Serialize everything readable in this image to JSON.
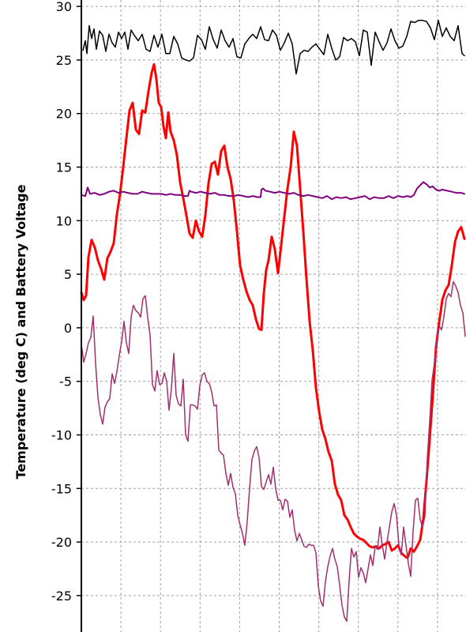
{
  "chart_data": {
    "type": "line",
    "title": "",
    "xlabel": "",
    "ylabel": "Temperature (deg C) and Battery Voltage",
    "ylim": [
      -28.4,
      30.6
    ],
    "xlim": [
      0,
      590
    ],
    "yticks": [
      30,
      25,
      20,
      15,
      10,
      5,
      0,
      -5,
      -10,
      -15,
      -20,
      -25
    ],
    "xgrid": [
      0,
      50,
      100,
      150,
      200,
      250,
      300,
      350,
      400,
      450
    ],
    "grid": true,
    "legend": "none",
    "series": [
      {
        "color": "#000000",
        "stroke_width": 1.5,
        "x": [
          105,
          108,
          110,
          113,
          116,
          119,
          122,
          126,
          130,
          134,
          138,
          142,
          146,
          150,
          154,
          158,
          162,
          166,
          170,
          175,
          180,
          185,
          190,
          195,
          200,
          205,
          210,
          215,
          220,
          225,
          230,
          235,
          240,
          245,
          250,
          255,
          260,
          265,
          270,
          275,
          280,
          285,
          290,
          295,
          300,
          305,
          310,
          315,
          320,
          325,
          330,
          335,
          340,
          345,
          350,
          355,
          360,
          365,
          370,
          375,
          380,
          385,
          390,
          395,
          400,
          405,
          410,
          415,
          420,
          425,
          430,
          435,
          440,
          445,
          450,
          455,
          460,
          465,
          470,
          475,
          480,
          485,
          490,
          495,
          500,
          505,
          510,
          515,
          520,
          525,
          530,
          535,
          540,
          545,
          550,
          555,
          560,
          565,
          570,
          575,
          580,
          585,
          588
        ],
        "values": [
          25.9,
          26.8,
          25.6,
          28.2,
          27.0,
          27.9,
          26.0,
          27.7,
          27.3,
          25.8,
          27.4,
          26.6,
          26.2,
          27.6,
          27.0,
          27.6,
          26.0,
          27.8,
          27.3,
          26.8,
          27.4,
          26.0,
          25.8,
          27.3,
          26.2,
          27.4,
          25.6,
          25.6,
          27.2,
          26.5,
          25.2,
          25.0,
          24.9,
          25.2,
          27.3,
          26.9,
          26.0,
          28.1,
          26.9,
          26.1,
          27.8,
          26.8,
          26.2,
          27.0,
          25.3,
          25.2,
          26.5,
          27.0,
          27.4,
          27.0,
          28.1,
          26.9,
          26.8,
          27.8,
          27.3,
          25.9,
          26.6,
          27.5,
          26.5,
          23.7,
          25.6,
          25.9,
          25.8,
          26.2,
          26.5,
          26.0,
          25.5,
          27.4,
          26.1,
          25.0,
          25.3,
          27.1,
          26.8,
          27.0,
          26.7,
          25.4,
          27.8,
          27.6,
          24.5,
          27.6,
          26.7,
          25.9,
          26.6,
          27.9,
          26.8,
          26.1,
          26.3,
          27.2,
          28.6,
          28.5,
          28.7,
          28.7,
          28.6,
          28.0,
          26.9,
          28.7,
          27.2,
          28.0,
          27.2,
          26.8,
          28.2,
          25.6,
          25.4
        ]
      },
      {
        "color": "#ff0000",
        "stroke_width": 3,
        "x": [
          103,
          106,
          109,
          112,
          116,
          120,
          124,
          128,
          132,
          136,
          140,
          144,
          148,
          152,
          156,
          160,
          164,
          168,
          172,
          176,
          180,
          184,
          188,
          192,
          195,
          198,
          201,
          204,
          207,
          210,
          213,
          216,
          220,
          224,
          228,
          232,
          236,
          240,
          244,
          248,
          252,
          256,
          260,
          264,
          268,
          272,
          276,
          280,
          284,
          288,
          292,
          296,
          300,
          304,
          308,
          312,
          316,
          320,
          324,
          328,
          331,
          334,
          337,
          340,
          344,
          348,
          352,
          356,
          360,
          364,
          368,
          372,
          376,
          380,
          384,
          388,
          392,
          396,
          400,
          404,
          408,
          412,
          416,
          420,
          424,
          428,
          432,
          436,
          440,
          444,
          448,
          452,
          456,
          460,
          464,
          468,
          472,
          476,
          480,
          484,
          488,
          492,
          496,
          500,
          504,
          508,
          512,
          516,
          520,
          524,
          528,
          532,
          536,
          540,
          544,
          548,
          552,
          556,
          560,
          564,
          568,
          572,
          576,
          580,
          584,
          588
        ],
        "values": [
          3.3,
          2.6,
          3.0,
          6.6,
          8.2,
          7.5,
          6.3,
          5.5,
          4.5,
          6.5,
          7.1,
          7.9,
          10.6,
          12.5,
          15.0,
          17.7,
          20.3,
          21.0,
          18.5,
          18.1,
          20.3,
          20.1,
          22.1,
          23.8,
          24.6,
          23.2,
          21.0,
          20.6,
          18.8,
          17.7,
          20.1,
          18.3,
          17.5,
          16.1,
          13.6,
          12.1,
          10.5,
          8.8,
          8.4,
          10.0,
          9.0,
          8.5,
          10.5,
          13.5,
          15.3,
          15.5,
          14.3,
          16.5,
          17.0,
          15.0,
          13.9,
          11.9,
          9.0,
          5.8,
          4.5,
          3.4,
          2.6,
          2.1,
          0.8,
          -0.1,
          -0.2,
          3.2,
          5.4,
          6.3,
          8.5,
          7.3,
          5.1,
          7.7,
          10.4,
          13.0,
          15.0,
          18.3,
          17.0,
          13.0,
          9.0,
          4.6,
          0.6,
          -2.1,
          -5.6,
          -7.8,
          -9.5,
          -10.4,
          -11.6,
          -12.4,
          -14.6,
          -15.6,
          -16.1,
          -17.5,
          -17.9,
          -18.6,
          -19.2,
          -19.5,
          -19.7,
          -19.8,
          -20.1,
          -20.4,
          -20.5,
          -20.4,
          -20.6,
          -20.3,
          -20.2,
          -20.0,
          -20.8,
          -20.6,
          -20.3,
          -21.0,
          -21.3,
          -21.5,
          -20.6,
          -20.9,
          -20.4,
          -19.8,
          -17.8,
          -14.3,
          -10.4,
          -6.3,
          -1.8,
          0.5,
          2.6,
          3.5,
          4.0,
          5.8,
          8.0,
          9.0,
          9.4,
          8.3
        ]
      },
      {
        "color": "#800080",
        "stroke_width": 2,
        "x": [
          103,
          108,
          111,
          114,
          120,
          126,
          132,
          138,
          144,
          150,
          156,
          162,
          168,
          174,
          180,
          186,
          192,
          198,
          204,
          210,
          216,
          222,
          228,
          234,
          238,
          240,
          242,
          248,
          254,
          260,
          266,
          272,
          278,
          284,
          290,
          296,
          302,
          308,
          314,
          320,
          326,
          330,
          331,
          333,
          336,
          342,
          348,
          354,
          360,
          366,
          372,
          378,
          384,
          390,
          396,
          402,
          408,
          414,
          420,
          426,
          432,
          438,
          444,
          450,
          456,
          462,
          468,
          474,
          480,
          486,
          492,
          498,
          504,
          510,
          516,
          520,
          524,
          528,
          532,
          536,
          540,
          544,
          548,
          552,
          556,
          560,
          566,
          572,
          578,
          584,
          588
        ],
        "values": [
          12.4,
          12.3,
          13.1,
          12.5,
          12.6,
          12.4,
          12.5,
          12.7,
          12.8,
          12.6,
          12.7,
          12.6,
          12.5,
          12.5,
          12.7,
          12.6,
          12.5,
          12.5,
          12.5,
          12.4,
          12.5,
          12.4,
          12.4,
          12.3,
          12.3,
          12.8,
          12.7,
          12.6,
          12.7,
          12.6,
          12.5,
          12.6,
          12.4,
          12.4,
          12.3,
          12.3,
          12.4,
          12.3,
          12.2,
          12.3,
          12.2,
          12.2,
          12.9,
          13.0,
          12.8,
          12.7,
          12.6,
          12.7,
          12.6,
          12.5,
          12.6,
          12.4,
          12.3,
          12.4,
          12.3,
          12.2,
          12.1,
          12.3,
          12.0,
          12.2,
          12.1,
          12.2,
          12.0,
          12.1,
          12.2,
          12.3,
          12.0,
          12.2,
          12.1,
          12.1,
          12.3,
          12.1,
          12.3,
          12.2,
          12.3,
          12.2,
          12.4,
          13.0,
          13.3,
          13.6,
          13.4,
          13.1,
          13.2,
          12.9,
          12.8,
          12.9,
          12.8,
          12.7,
          12.6,
          12.6,
          12.5
        ]
      },
      {
        "color": "#a0306e",
        "stroke_width": 1.5,
        "x": [
          103,
          106,
          109,
          112,
          115,
          118,
          121,
          124,
          127,
          130,
          133,
          136,
          139,
          142,
          145,
          148,
          151,
          154,
          157,
          160,
          163,
          166,
          169,
          172,
          175,
          178,
          181,
          184,
          187,
          190,
          193,
          196,
          199,
          202,
          205,
          208,
          211,
          214,
          217,
          220,
          223,
          226,
          229,
          232,
          235,
          238,
          241,
          244,
          247,
          250,
          253,
          256,
          259,
          262,
          265,
          268,
          271,
          274,
          277,
          280,
          283,
          286,
          289,
          292,
          295,
          298,
          301,
          304,
          307,
          310,
          313,
          316,
          319,
          322,
          325,
          328,
          331,
          334,
          337,
          340,
          343,
          346,
          349,
          352,
          355,
          358,
          361,
          364,
          367,
          370,
          373,
          376,
          379,
          382,
          385,
          388,
          391,
          394,
          397,
          400,
          403,
          406,
          409,
          412,
          415,
          418,
          421,
          424,
          427,
          430,
          433,
          436,
          439,
          442,
          445,
          448,
          451,
          454,
          457,
          460,
          463,
          466,
          469,
          472,
          475,
          478,
          481,
          484,
          487,
          490,
          493,
          496,
          499,
          502,
          505,
          508,
          511,
          514,
          517,
          520,
          523,
          526,
          529,
          532,
          535,
          538,
          541,
          544,
          547,
          550,
          553,
          556,
          559,
          562,
          565,
          568,
          571,
          574,
          577,
          580,
          583,
          586,
          589
        ],
        "values": [
          -1.5,
          -3.2,
          -2.4,
          -1.4,
          -0.9,
          1.1,
          -3.3,
          -6.5,
          -8.1,
          -9.0,
          -7.4,
          -6.9,
          -6.6,
          -4.3,
          -5.2,
          -4.1,
          -2.6,
          -1.3,
          0.6,
          -1.4,
          -2.4,
          1.0,
          2.1,
          1.6,
          1.4,
          1.0,
          2.7,
          3.0,
          1.0,
          -0.7,
          -5.3,
          -5.9,
          -4.0,
          -5.3,
          -5.2,
          -4.2,
          -5.0,
          -7.7,
          -5.7,
          -2.4,
          -6.3,
          -7.1,
          -7.3,
          -4.8,
          -10.0,
          -10.6,
          -7.2,
          -7.2,
          -7.3,
          -7.6,
          -5.4,
          -4.4,
          -4.2,
          -5.0,
          -5.2,
          -6.0,
          -7.3,
          -7.2,
          -11.4,
          -11.7,
          -11.9,
          -13.6,
          -14.7,
          -13.6,
          -14.9,
          -15.5,
          -17.5,
          -18.4,
          -19.2,
          -20.3,
          -18.1,
          -15.0,
          -12.3,
          -11.5,
          -11.1,
          -12.1,
          -14.8,
          -15.1,
          -14.4,
          -13.7,
          -14.6,
          -13.0,
          -15.0,
          -16.1,
          -16.1,
          -17.0,
          -16.0,
          -16.2,
          -17.7,
          -17.0,
          -18.9,
          -19.9,
          -19.2,
          -19.8,
          -20.4,
          -20.5,
          -20.2,
          -20.3,
          -20.3,
          -21.0,
          -24.1,
          -25.5,
          -26.0,
          -23.7,
          -22.3,
          -21.3,
          -20.6,
          -21.6,
          -22.3,
          -24.0,
          -25.9,
          -27.0,
          -27.4,
          -23.6,
          -20.6,
          -21.4,
          -20.9,
          -23.3,
          -22.4,
          -22.9,
          -23.8,
          -22.5,
          -21.2,
          -22.2,
          -20.4,
          -20.7,
          -18.6,
          -20.3,
          -21.6,
          -20.0,
          -18.6,
          -17.2,
          -16.4,
          -17.5,
          -20.3,
          -21.2,
          -18.6,
          -20.3,
          -22.0,
          -23.2,
          -19.0,
          -16.1,
          -15.9,
          -17.9,
          -18.6,
          -17.6,
          -12.2,
          -8.8,
          -4.9,
          -3.3,
          -1.2,
          0.2,
          -0.2,
          1.0,
          2.7,
          3.2,
          2.9,
          4.3,
          3.9,
          3.3,
          2.1,
          1.4,
          -0.8
        ]
      }
    ]
  }
}
